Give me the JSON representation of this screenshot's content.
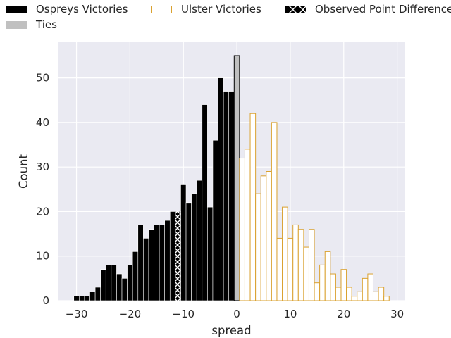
{
  "chart_data": {
    "type": "bar",
    "xlabel": "spread",
    "ylabel": "Count",
    "xlim": [
      -33.5,
      31.5
    ],
    "ylim": [
      0,
      58
    ],
    "xticks": [
      -30,
      -20,
      -10,
      0,
      10,
      20,
      30
    ],
    "xtick_labels": [
      "−30",
      "−20",
      "−10",
      "0",
      "10",
      "20",
      "30"
    ],
    "yticks": [
      0,
      10,
      20,
      30,
      40,
      50
    ],
    "ytick_labels": [
      "0",
      "10",
      "20",
      "30",
      "40",
      "50"
    ],
    "grid": true,
    "legend_placement": "top",
    "legend": {
      "ospreys": "Ospreys Victories",
      "ulster": "Ulster Victories",
      "observed": "Observed Point Difference",
      "ties": "Ties"
    },
    "colors": {
      "ospreys": "#000000",
      "ulster": "#daa12f",
      "ties": "#c0c0c0",
      "background": "#eaeaf2",
      "grid": "#ffffff"
    },
    "series": [
      {
        "key": "ospreys",
        "x": [
          -30,
          -29,
          -28,
          -27,
          -26,
          -25,
          -24,
          -23,
          -22,
          -21,
          -20,
          -19,
          -18,
          -17,
          -16,
          -15,
          -14,
          -13,
          -12,
          -11,
          -10,
          -9,
          -8,
          -7,
          -6,
          -5,
          -4,
          -3,
          -2,
          -1
        ],
        "values": [
          1,
          1,
          1,
          2,
          3,
          7,
          8,
          8,
          6,
          5,
          8,
          11,
          17,
          14,
          16,
          17,
          17,
          18,
          20,
          20,
          26,
          22,
          24,
          27,
          44,
          21,
          36,
          50,
          47,
          47
        ]
      },
      {
        "key": "ties",
        "x": [
          0
        ],
        "values": [
          55
        ]
      },
      {
        "key": "ulster",
        "x": [
          1,
          2,
          3,
          4,
          5,
          6,
          7,
          8,
          9,
          10,
          11,
          12,
          13,
          14,
          15,
          16,
          17,
          18,
          19,
          20,
          21,
          22,
          23,
          24,
          25,
          26,
          27,
          28
        ],
        "values": [
          32,
          34,
          42,
          24,
          28,
          29,
          40,
          14,
          21,
          14,
          17,
          16,
          12,
          16,
          4,
          8,
          11,
          6,
          3,
          7,
          3,
          1,
          2,
          5,
          6,
          2,
          3,
          1
        ]
      }
    ],
    "observed_point_difference": {
      "x": -11,
      "value": 20
    }
  }
}
